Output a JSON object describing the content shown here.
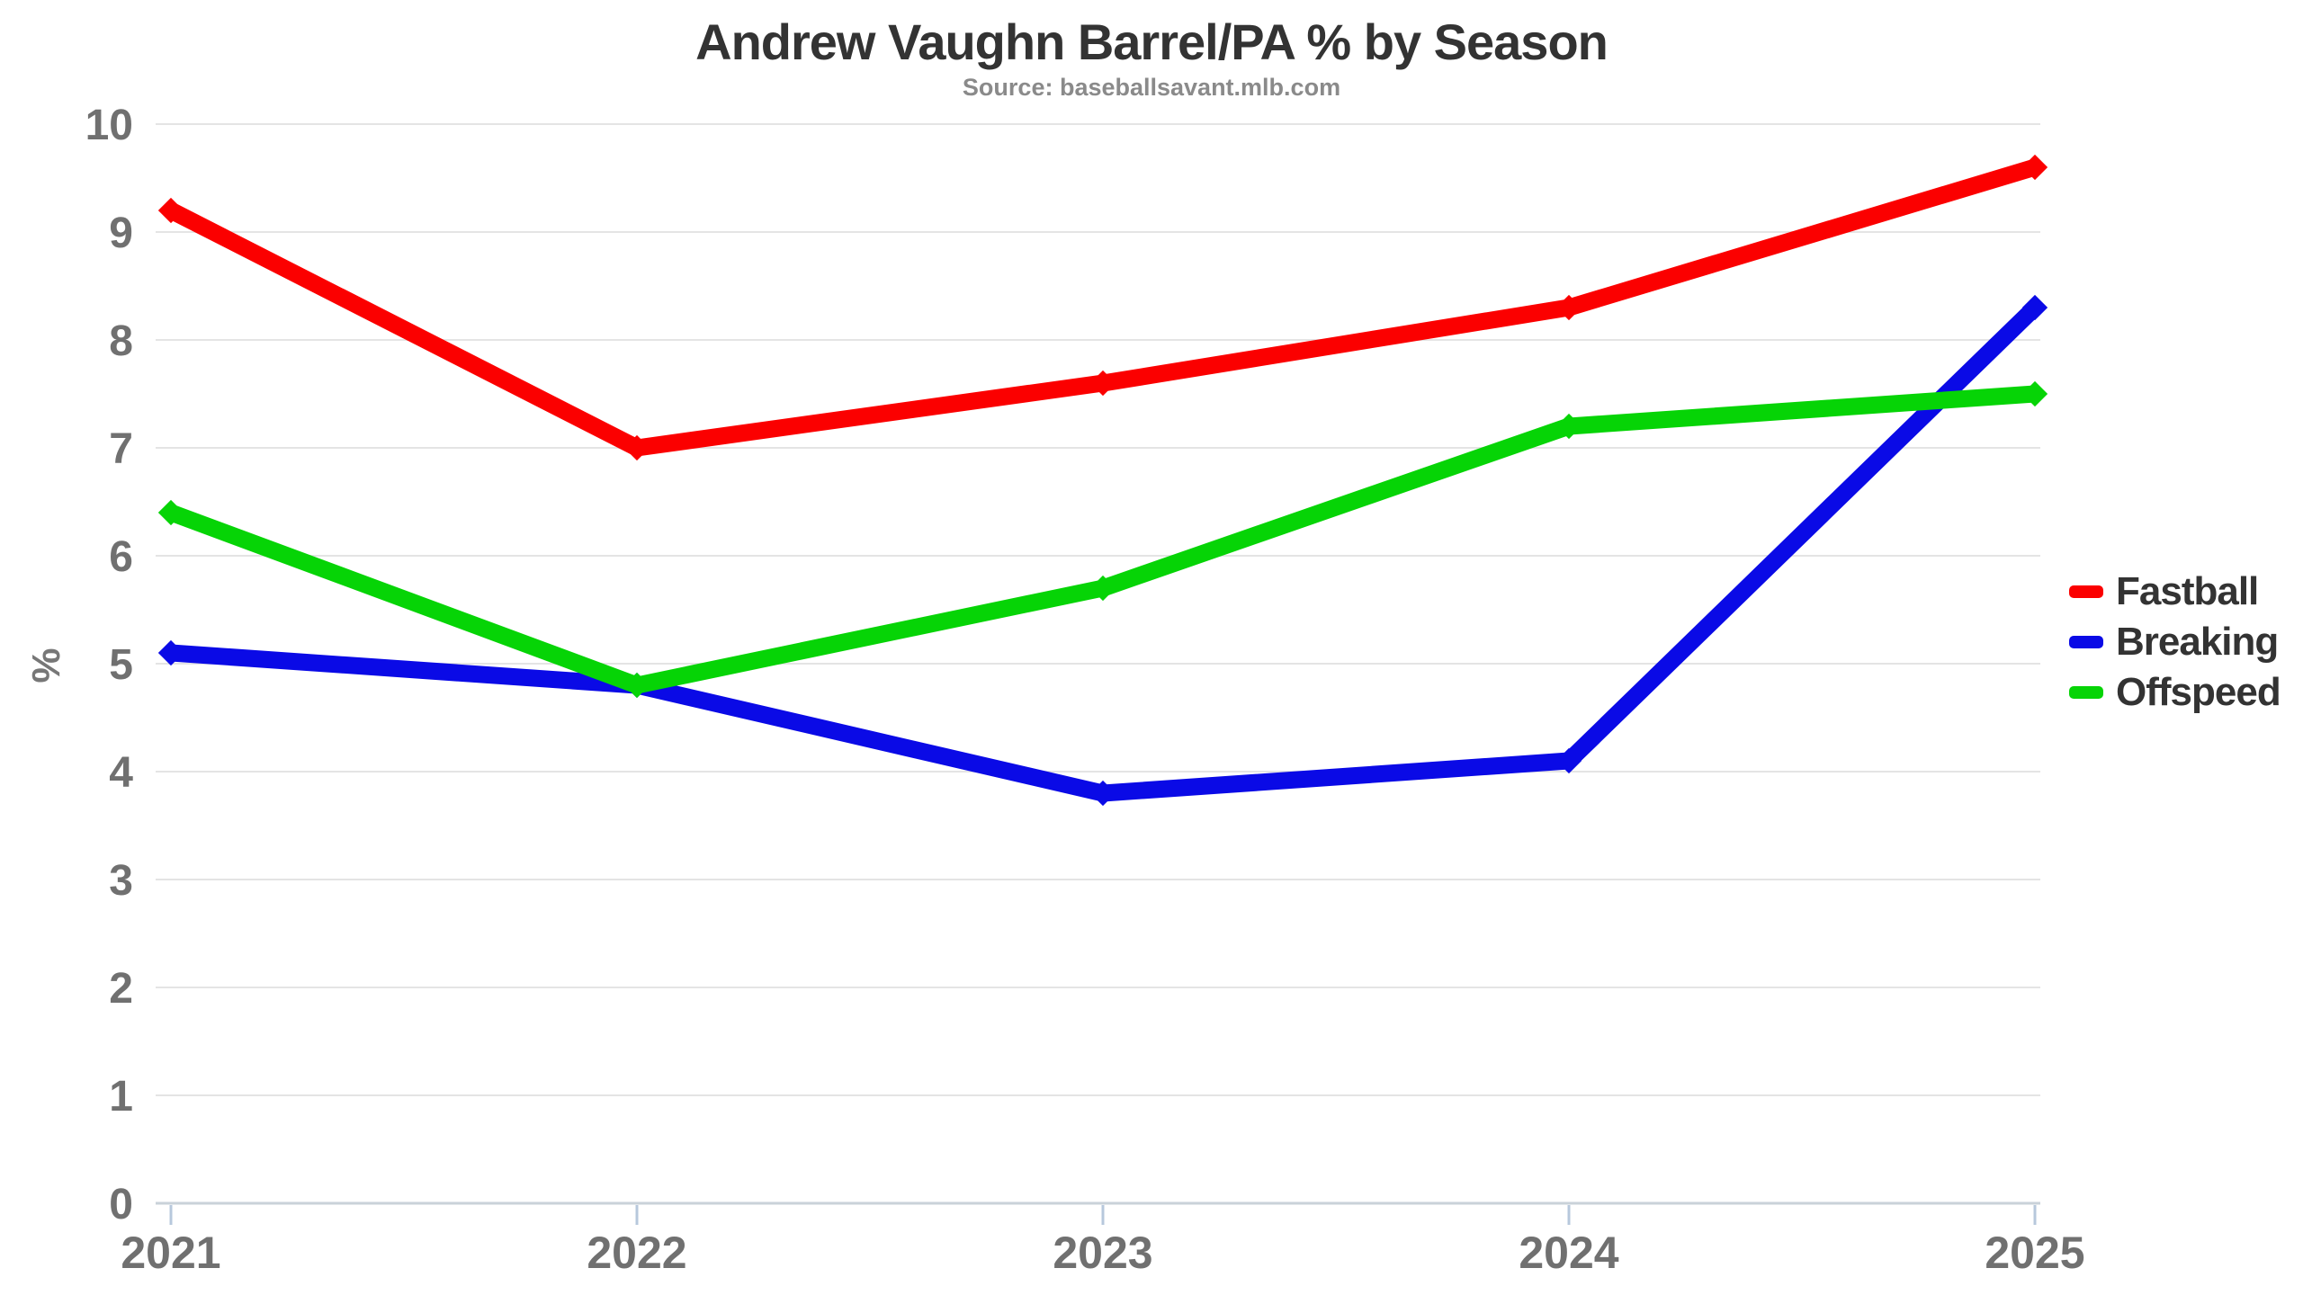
{
  "title": "Andrew Vaughn Barrel/PA % by Season",
  "subtitle": "Source: baseballsavant.mlb.com",
  "chart_data": {
    "type": "line",
    "x": [
      "2021",
      "2022",
      "2023",
      "2024",
      "2025"
    ],
    "series": [
      {
        "name": "Fastball",
        "color": "#fb0000",
        "values": [
          9.2,
          7.0,
          7.6,
          8.3,
          9.6
        ]
      },
      {
        "name": "Breaking",
        "color": "#0a0ae6",
        "values": [
          5.1,
          4.8,
          3.8,
          4.1,
          8.3
        ]
      },
      {
        "name": "Offspeed",
        "color": "#06d406",
        "values": [
          6.4,
          4.8,
          5.7,
          7.2,
          7.5
        ]
      }
    ],
    "xlabel": "",
    "ylabel": "%",
    "ylim": [
      0,
      10
    ],
    "yticks": [
      0,
      1,
      2,
      3,
      4,
      5,
      6,
      7,
      8,
      9,
      10
    ],
    "grid": "horizontal",
    "legend_position": "right"
  },
  "style_colors": {
    "background": "#ffffff",
    "gridline": "#e4e4e4",
    "axis_line": "#c9d2d9",
    "tick_mark": "#b7c8dc",
    "tick_label": "#707070",
    "axis_title": "#777777",
    "title_text": "#333333",
    "subtitle_text": "#8a8a8a",
    "legend_text": "#333333"
  }
}
